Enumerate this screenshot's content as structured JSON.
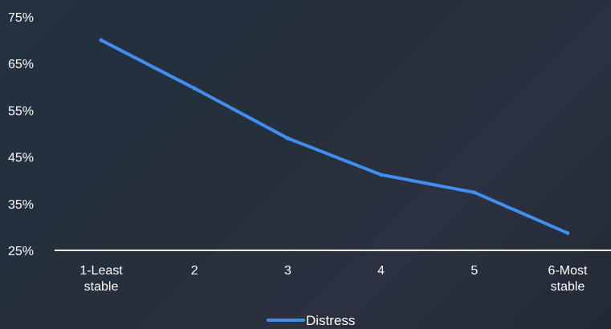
{
  "chart_data": {
    "type": "line",
    "categories": [
      "1-Least stable",
      "2",
      "3",
      "4",
      "5",
      "6-Most stable"
    ],
    "category_lines": [
      [
        "1-Least",
        "stable"
      ],
      [
        "2"
      ],
      [
        "3"
      ],
      [
        "4"
      ],
      [
        "5"
      ],
      [
        "6-Most",
        "stable"
      ]
    ],
    "series": [
      {
        "name": "Distress",
        "values": [
          70,
          59.7,
          49,
          41.2,
          37.4,
          28.7
        ],
        "color": "#3f8ff0"
      }
    ],
    "yticks": [
      "75%",
      "65%",
      "55%",
      "45%",
      "35%",
      "25%"
    ],
    "ytick_values": [
      75,
      65,
      55,
      45,
      35,
      25
    ],
    "ylim": [
      25,
      75
    ],
    "grid": false,
    "legend_position": "bottom-center",
    "axis_color": "#ffffff",
    "background": "#262f3c"
  }
}
